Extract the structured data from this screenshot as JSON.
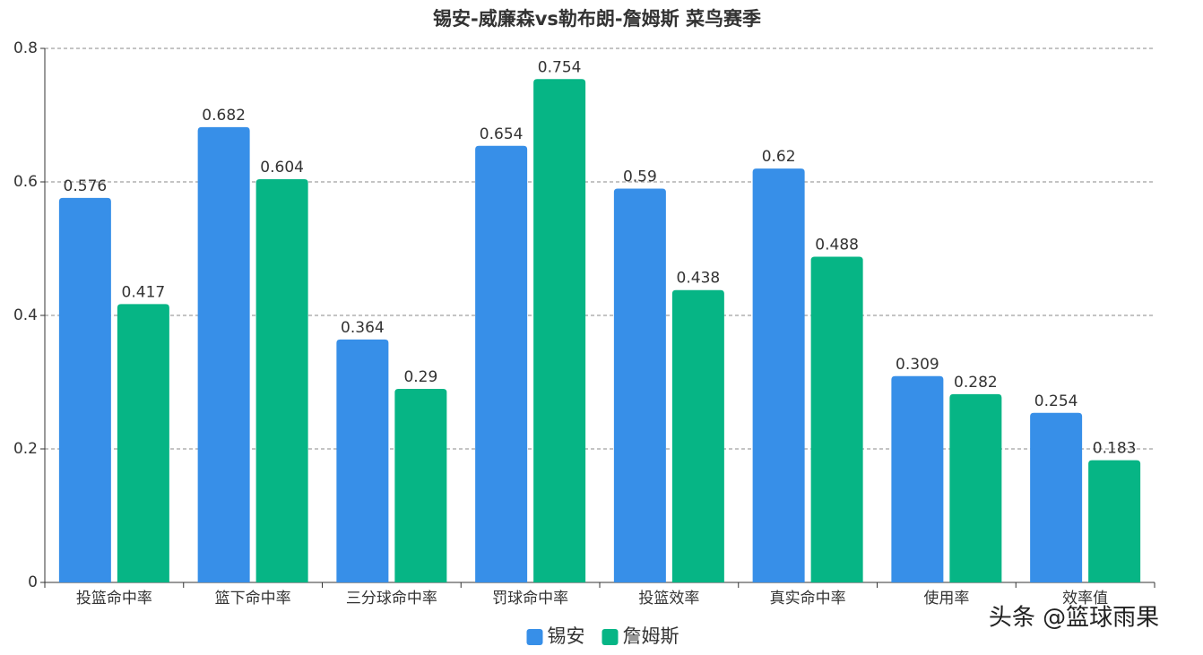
{
  "chart_data": {
    "type": "bar",
    "title": "锡安-威廉森vs勒布朗-詹姆斯 菜鸟赛季",
    "categories": [
      "投篮命中率",
      "篮下命中率",
      "三分球命中率",
      "罚球命中率",
      "投篮效率",
      "真实命中率",
      "使用率",
      "效率值"
    ],
    "series": [
      {
        "name": "锡安",
        "color": "#378fe8",
        "values": [
          0.576,
          0.682,
          0.364,
          0.654,
          0.59,
          0.62,
          0.309,
          0.254
        ]
      },
      {
        "name": "詹姆斯",
        "color": "#06b585",
        "values": [
          0.417,
          0.604,
          0.29,
          0.754,
          0.438,
          0.488,
          0.282,
          0.183
        ]
      }
    ],
    "ylim": [
      0,
      0.8
    ],
    "yticks": [
      0,
      0.2,
      0.4,
      0.6,
      0.8
    ],
    "grid": true,
    "legend": "bottom",
    "watermark": "头条 @篮球雨果"
  }
}
